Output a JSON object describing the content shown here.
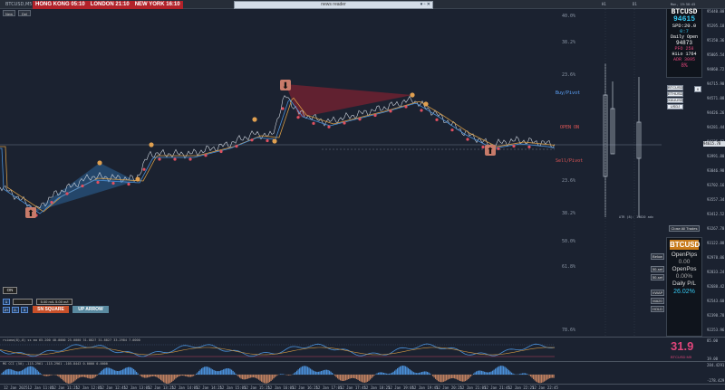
{
  "window": {
    "title": "BTCUSD,M5"
  },
  "clocks": [
    {
      "label": "HONG KONG 05:10",
      "bg": "#b2222a"
    },
    {
      "label": "LONDON 21:10",
      "bg": "#b2222a"
    },
    {
      "label": "NEW YORK 16:10",
      "bg": "#b2222a"
    }
  ],
  "news": {
    "title": "news reader"
  },
  "toolbar": {
    "new_label": "New",
    "del_label": "Del"
  },
  "fib_levels": [
    {
      "label": "40.0%",
      "kind": "fib"
    },
    {
      "label": "38.2%",
      "kind": "fib"
    },
    {
      "label": "23.6%",
      "kind": "fib"
    },
    {
      "label": "Buy/Pivot",
      "kind": "pivot"
    },
    {
      "label": "OPEN ON",
      "kind": "open"
    },
    {
      "label": "Sell/Pivot",
      "kind": "sell"
    },
    {
      "label": "23.6%",
      "kind": "fib"
    },
    {
      "label": "38.2%",
      "kind": "fib"
    },
    {
      "label": "50.0%",
      "kind": "fib"
    },
    {
      "label": "61.8%",
      "kind": "fib"
    },
    {
      "label": "78.6%",
      "kind": "fib"
    }
  ],
  "price_axis": [
    "95440.00",
    "95295.18",
    "95150.36",
    "95005.54",
    "94860.72",
    "94715.90",
    "94571.08",
    "94426.26",
    "94281.44",
    "94136.62",
    "93991.80",
    "93846.98",
    "93702.16",
    "93557.34",
    "93412.52",
    "93267.70",
    "93122.88",
    "92978.06",
    "92833.24",
    "92688.42",
    "92543.60",
    "92398.78",
    "92253.96"
  ],
  "current_price": "94615.78",
  "symbol_panel": {
    "symbol": "BTCUSD",
    "price": "94615",
    "spread": "SPD:20.0",
    "change": "0:7",
    "daily_open_label": "Daily Open",
    "daily_open": "94873",
    "pfo": "PFO  258",
    "hilo_label": "HiLo",
    "hilo": "1764",
    "adr": "ADR 3095",
    "adr_pct": "8%"
  },
  "symbol_buttons": [
    "BTCUSD",
    "ETHUSD",
    "XAUUSD",
    "USDJ"
  ],
  "x_button": "X",
  "atr_text": "ATR (8): 15020 adx",
  "close_all_label": "Close All Trades",
  "account": {
    "symbol": "BTCUSD",
    "open_pips_label": "OpenPips",
    "open_pips": "0.00",
    "open_pos_label": "OpenPos",
    "open_pos": "0.00%",
    "daily_pl_label": "Daily P/L",
    "daily_pl": "26.02%"
  },
  "side_buttons": [
    "Below",
    "50-set",
    "50-set",
    "VWAP",
    "MA20",
    "HOLD"
  ],
  "bottom_controls": {
    "status": "ON",
    "lots_text": "5.00 m/L  5.00 m/l",
    "sn_square": "SN SQUARE",
    "up_arrow": "UP ARROW",
    "small_btns": [
      "1",
      "2+",
      "2-",
      "3"
    ]
  },
  "rsi": {
    "label": "rsioma(8),0) ss ma 65.200 40.0000 25.0000 31.8827 31.8827 33.2984 7.0000",
    "value": "31.9",
    "sub": "BTCUSD M5",
    "axis": [
      "85.00",
      "",
      "19.00"
    ]
  },
  "cci": {
    "label": "MG CCI (50) -115.2961 -115.2961 -105.8443 0.0000 0.0000",
    "axis": [
      "284.4291",
      "",
      "-278.429"
    ]
  },
  "time_axis": [
    "12 Jan 2025",
    "12 Jan 11:05",
    "12 Jan 11:25",
    "12 Jan 12:05",
    "12 Jan 12:45",
    "12 Jan 13:05",
    "12 Jan 13:25",
    "12 Jan 14:05",
    "12 Jan 14:25",
    "12 Jan 15:05",
    "12 Jan 15:25",
    "12 Jan 16:05",
    "12 Jan 16:25",
    "12 Jan 17:05",
    "12 Jan 17:45",
    "12 Jan 18:25",
    "12 Jan 19:05",
    "12 Jan 19:45",
    "12 Jan 20:25",
    "12 Jan 21:05",
    "12 Jan 21:45",
    "12 Jan 22:25",
    "12 Jan 22:45"
  ],
  "right_header": {
    "h1": "H1",
    "d1": "D1",
    "date": "Mon, 19:58:45"
  }
}
